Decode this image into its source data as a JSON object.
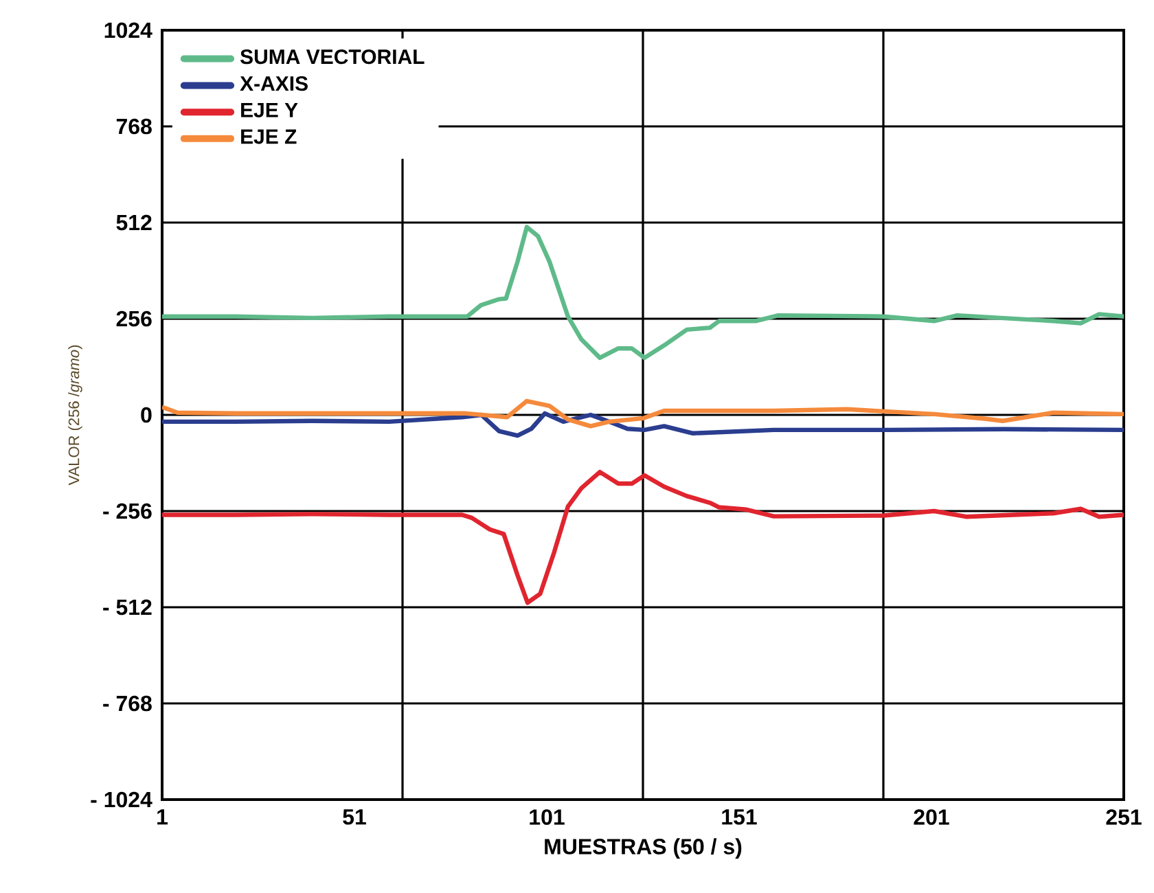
{
  "chart_data": {
    "type": "line",
    "xlabel": "MUESTRAS (50 / s)",
    "ylabel": "VALOR (256 /*gramo*)",
    "xlim": [
      1,
      251
    ],
    "ylim": [
      -1024,
      1024
    ],
    "xticks": [
      1,
      51,
      101,
      151,
      201,
      251,
      {
        "value": 63.5,
        "label": null
      },
      {
        "value": 126,
        "label": null
      },
      {
        "value": 188.5,
        "label": null
      }
    ],
    "yticks": [
      {
        "value": -1024,
        "label": "- 1024"
      },
      {
        "value": -768,
        "label": "- 768"
      },
      {
        "value": -512,
        "label": "- 512"
      },
      {
        "value": -256,
        "label": "- 256"
      },
      0,
      256,
      512,
      768,
      1024
    ],
    "grid": true,
    "legend": "top left",
    "marker": "none",
    "line_style": "solid",
    "series": [
      {
        "name": "SUMA VECTORIAL",
        "color": "#5fba8a",
        "x": [
          1,
          20,
          40,
          60,
          80.3,
          83.9,
          88.6,
          90.4,
          93.4,
          95.8,
          98.7,
          101.7,
          106.5,
          110,
          114.8,
          119.6,
          123.1,
          126.4,
          131.5,
          137.4,
          143.4,
          145.8,
          155.3,
          161.2,
          188.6,
          201.7,
          207.7,
          232.7,
          239.8,
          244.6,
          251
        ],
        "values": [
          262,
          262,
          258,
          262,
          262,
          292,
          308,
          310,
          408,
          500,
          476,
          408,
          262,
          201,
          152,
          177,
          177,
          152,
          185,
          227,
          232,
          250,
          250,
          265,
          262,
          250,
          265,
          250,
          244,
          268,
          262
        ]
      },
      {
        "name": "X-AXIS",
        "color": "#2a3d8f",
        "x": [
          1,
          20,
          40,
          60,
          79,
          84,
          88.6,
          93.4,
          97,
          100.5,
          105.3,
          112.4,
          117.2,
          122,
          126.4,
          131.5,
          139,
          160,
          190,
          220,
          251
        ],
        "values": [
          -18,
          -18,
          -16,
          -18,
          -6,
          0,
          -43,
          -55,
          -37,
          4,
          -18,
          0,
          -18,
          -37,
          -40,
          -30,
          -49,
          -40,
          -40,
          -38,
          -40
        ]
      },
      {
        "name": "EJE Y",
        "color": "#e0252f",
        "x": [
          1,
          20,
          40,
          60,
          79,
          81.5,
          86.2,
          89.8,
          93.4,
          96,
          99.3,
          102.9,
          106.5,
          110,
          114.8,
          119.6,
          123.1,
          126.4,
          131.5,
          137.4,
          143.4,
          145.8,
          152.9,
          160,
          188.6,
          201.7,
          210,
          232.7,
          239.8,
          244.6,
          251
        ],
        "values": [
          -266,
          -266,
          -264,
          -266,
          -266,
          -274,
          -305,
          -317,
          -427,
          -500,
          -476,
          -366,
          -244,
          -195,
          -152,
          -183,
          -183,
          -161,
          -191,
          -216,
          -234,
          -246,
          -252,
          -270,
          -268,
          -256,
          -271,
          -262,
          -250,
          -271,
          -266
        ]
      },
      {
        "name": "EJE Z",
        "color": "#f58a3c",
        "x": [
          1,
          5,
          20,
          40,
          60,
          80,
          90.7,
          95.8,
          101.7,
          106.5,
          112.4,
          117.2,
          126,
          131.5,
          160,
          179,
          201.7,
          214.8,
          219.5,
          232.7,
          251
        ],
        "values": [
          21,
          6,
          4,
          4,
          4,
          4,
          -6,
          37,
          24,
          -12,
          -30,
          -18,
          -9,
          11,
          11,
          15,
          2,
          -10,
          -16,
          6,
          2
        ]
      }
    ]
  }
}
